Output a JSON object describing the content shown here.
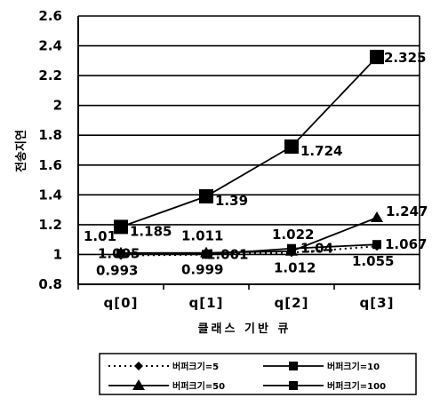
{
  "chart_data": {
    "type": "line",
    "title": "",
    "xlabel": "클래스 기반 큐",
    "ylabel": "전송지연",
    "categories": [
      "q[0]",
      "q[1]",
      "q[2]",
      "q[3]"
    ],
    "ylim": [
      0.8,
      2.6
    ],
    "yticks": [
      "0.8",
      "1",
      "1.2",
      "1.4",
      "1.6",
      "1.8",
      "2",
      "2.2",
      "2.4",
      "2.6"
    ],
    "grid": true,
    "legend_position": "bottom",
    "series": [
      {
        "name": "버퍼크기=5",
        "values": [
          0.993,
          0.999,
          1.012,
          1.055
        ],
        "labels": [
          "0.993",
          "0.999",
          "1.012",
          "1.055"
        ],
        "marker": "diamond",
        "line": "dotted"
      },
      {
        "name": "버퍼크기=10",
        "values": [
          1.005,
          1.001,
          1.04,
          1.067
        ],
        "labels": [
          "1.005",
          "1.001",
          "1.04",
          "1.067"
        ],
        "marker": "square",
        "line": "solid"
      },
      {
        "name": "버퍼크기=50",
        "values": [
          1.01,
          1.011,
          1.022,
          1.247
        ],
        "labels": [
          "1.01",
          "1.011",
          "1.022",
          "1.247"
        ],
        "marker": "triangle",
        "line": "solid"
      },
      {
        "name": "버퍼크기=100",
        "values": [
          1.185,
          1.39,
          1.724,
          2.325
        ],
        "labels": [
          "1.185",
          "1.39",
          "1.724",
          "2.325"
        ],
        "marker": "square-large",
        "line": "solid"
      }
    ]
  }
}
